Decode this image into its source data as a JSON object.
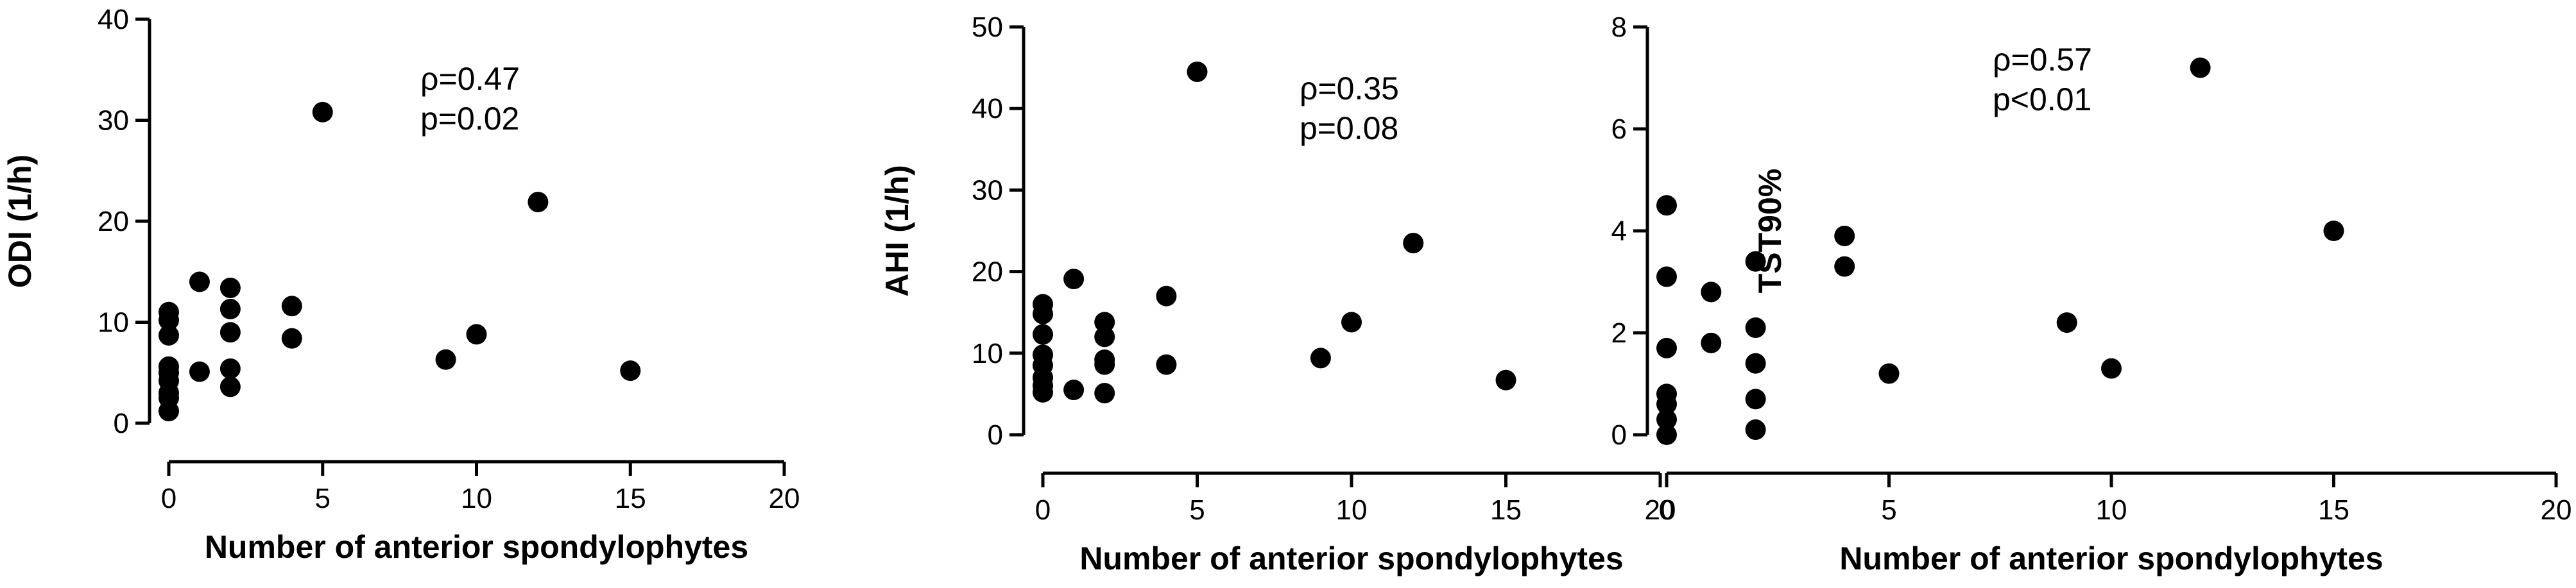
{
  "chart_data": [
    {
      "type": "scatter",
      "xlabel": "Number of anterior spondylophytes",
      "ylabel": "ODI (1/h)",
      "xlim": [
        0,
        20
      ],
      "ylim": [
        0,
        40
      ],
      "xticks": [
        "0",
        "5",
        "10",
        "15",
        "20"
      ],
      "yticks": [
        "0",
        "10",
        "20",
        "30",
        "40"
      ],
      "annotation": [
        "ρ=0.47",
        "p=0.02"
      ],
      "grid": false,
      "points": [
        [
          0,
          11.0
        ],
        [
          0,
          10.2
        ],
        [
          0,
          8.7
        ],
        [
          0,
          5.6
        ],
        [
          0,
          5.0
        ],
        [
          0,
          4.2
        ],
        [
          0,
          3.0
        ],
        [
          0,
          2.5
        ],
        [
          0,
          1.2
        ],
        [
          1,
          14.0
        ],
        [
          1,
          5.1
        ],
        [
          2,
          13.4
        ],
        [
          2,
          11.3
        ],
        [
          2,
          9.0
        ],
        [
          2,
          5.4
        ],
        [
          2,
          3.6
        ],
        [
          4,
          11.6
        ],
        [
          4,
          8.4
        ],
        [
          5,
          30.8
        ],
        [
          9,
          6.3
        ],
        [
          10,
          8.8
        ],
        [
          12,
          21.9
        ],
        [
          15,
          5.2
        ]
      ]
    },
    {
      "type": "scatter",
      "xlabel": "Number of anterior spondylophytes",
      "ylabel": "AHI (1/h)",
      "xlim": [
        0,
        20
      ],
      "ylim": [
        0,
        50
      ],
      "xticks": [
        "0",
        "5",
        "10",
        "15",
        "20"
      ],
      "yticks": [
        "0",
        "10",
        "20",
        "30",
        "40",
        "50"
      ],
      "annotation": [
        "ρ=0.35",
        "p=0.08"
      ],
      "grid": false,
      "points": [
        [
          0,
          16.0
        ],
        [
          0,
          14.8
        ],
        [
          0,
          12.3
        ],
        [
          0,
          9.8
        ],
        [
          0,
          8.5
        ],
        [
          0,
          7.0
        ],
        [
          0,
          6.0
        ],
        [
          0,
          5.2
        ],
        [
          1,
          19.1
        ],
        [
          1,
          5.5
        ],
        [
          2,
          13.8
        ],
        [
          2,
          12.0
        ],
        [
          2,
          9.2
        ],
        [
          2,
          8.6
        ],
        [
          2,
          5.1
        ],
        [
          4,
          17.0
        ],
        [
          4,
          8.6
        ],
        [
          5,
          44.5
        ],
        [
          9,
          9.4
        ],
        [
          10,
          13.8
        ],
        [
          12,
          23.5
        ],
        [
          15,
          6.7
        ]
      ]
    },
    {
      "type": "scatter",
      "xlabel": "Number of anterior spondylophytes",
      "ylabel": "TST90%",
      "xlim": [
        0,
        20
      ],
      "ylim": [
        0,
        8
      ],
      "xticks": [
        "0",
        "5",
        "10",
        "15",
        "20"
      ],
      "yticks": [
        "0",
        "2",
        "4",
        "6",
        "8"
      ],
      "annotation": [
        "ρ=0.57",
        "p<0.01"
      ],
      "grid": false,
      "points": [
        [
          0,
          4.5
        ],
        [
          0,
          3.1
        ],
        [
          0,
          1.7
        ],
        [
          0,
          0.8
        ],
        [
          0,
          0.6
        ],
        [
          0,
          0.3
        ],
        [
          0,
          0.0
        ],
        [
          1,
          2.8
        ],
        [
          1,
          1.8
        ],
        [
          2,
          3.4
        ],
        [
          2,
          2.1
        ],
        [
          2,
          1.4
        ],
        [
          2,
          0.7
        ],
        [
          2,
          0.1
        ],
        [
          4,
          3.9
        ],
        [
          4,
          3.3
        ],
        [
          5,
          1.2
        ],
        [
          9,
          2.2
        ],
        [
          10,
          1.3
        ],
        [
          12,
          7.2
        ],
        [
          15,
          4.0
        ]
      ]
    }
  ]
}
